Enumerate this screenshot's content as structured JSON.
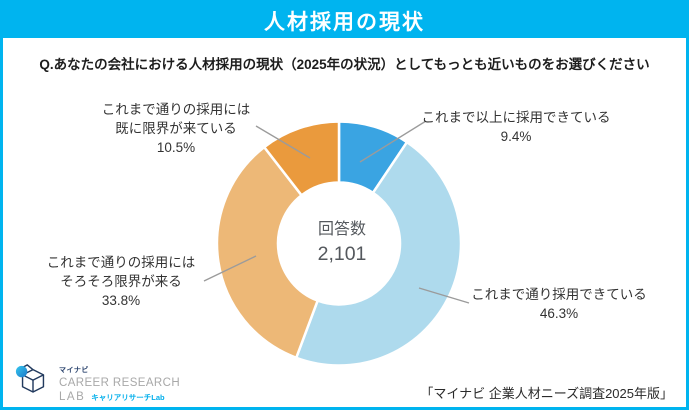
{
  "frame": {
    "accent_color": "#00B4EF"
  },
  "header": {
    "title": "人材採用の現状"
  },
  "question": "Q.あなたの会社における人材採用の現状（2025年の状況）としてもっとも近いものをお選びください",
  "donut_center": {
    "label": "回答数",
    "value": "2,101"
  },
  "callouts": [
    {
      "id": "already-limit",
      "lines": [
        "これまで通りの採用には",
        "既に限界が来ている"
      ],
      "pct": "10.5%"
    },
    {
      "id": "more-hiring",
      "lines": [
        "これまで以上に採用できている"
      ],
      "pct": "9.4%"
    },
    {
      "id": "soon-limit",
      "lines": [
        "これまで通りの採用には",
        "そろそろ限界が来る"
      ],
      "pct": "33.8%"
    },
    {
      "id": "as-before",
      "lines": [
        "これまで通り採用できている"
      ],
      "pct": "46.3%"
    }
  ],
  "footer": {
    "source": "「マイナビ 企業人材ニーズ調査2025年版」",
    "logo": {
      "brand_small": "マイナビ",
      "line1": "CAREER RESEARCH",
      "line2": "LAB",
      "subtitle": "キャリアリサーチLab"
    }
  },
  "chart_data": {
    "type": "pie",
    "variant": "donut",
    "title": "人材採用の現状",
    "categories": [
      "これまで以上に採用できている",
      "これまで通り採用できている",
      "これまで通りの採用にはそろそろ限界が来る",
      "これまで通りの採用には既に限界が来ている"
    ],
    "values": [
      9.4,
      46.3,
      33.8,
      10.5
    ],
    "unit": "%",
    "colors": [
      "#3AA4E2",
      "#AEDAED",
      "#EDB877",
      "#EA9A3D"
    ],
    "start_angle_deg": 0,
    "direction": "clockwise",
    "legend": "none",
    "center_label": "回答数",
    "center_value": "2,101",
    "respondents": 2101
  }
}
